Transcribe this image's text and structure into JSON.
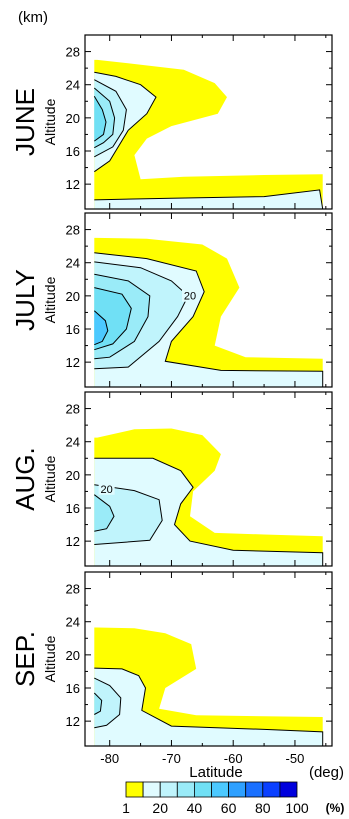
{
  "chart_data": {
    "type": "contour",
    "unit_altitude": "(km)",
    "unit_latitude": "(deg)",
    "xlabel": "Latitude",
    "ylabel": "Altitude",
    "xlim": [
      -84,
      -44
    ],
    "ylim": [
      9,
      30
    ],
    "x_ticks": [
      -80,
      -70,
      -60,
      -50
    ],
    "y_ticks": [
      12,
      16,
      20,
      24,
      28
    ],
    "panels": [
      {
        "month": "JUNE",
        "inline_labels": [],
        "levels": [
          {
            "value": 1,
            "pts": [
              [
                -82,
                27
              ],
              [
                -76,
                26.5
              ],
              [
                -68,
                25.8
              ],
              [
                -63,
                24.2
              ],
              [
                -61,
                22.5
              ],
              [
                -62.5,
                20.5
              ],
              [
                -70,
                19
              ],
              [
                -74,
                17.5
              ],
              [
                -76,
                15.5
              ],
              [
                -75,
                12.6
              ],
              [
                -68,
                12.9
              ],
              [
                -55,
                13.1
              ],
              [
                -45.5,
                13.2
              ],
              [
                -45.5,
                9
              ],
              [
                -82.5,
                9
              ],
              [
                -82.5,
                27
              ]
            ]
          },
          {
            "value": 10,
            "pts": [
              [
                -82.5,
                25.5
              ],
              [
                -79,
                25
              ],
              [
                -75,
                24
              ],
              [
                -72.5,
                22.5
              ],
              [
                -74,
                20.5
              ],
              [
                -77,
                18.5
              ],
              [
                -80,
                14.8
              ],
              [
                -82.5,
                13.5
              ]
            ]
          },
          {
            "value": 10,
            "pts": [
              [
                -82.5,
                10.1
              ],
              [
                -70,
                10.3
              ],
              [
                -55,
                10.5
              ],
              [
                -46,
                11.3
              ],
              [
                -45.5,
                9
              ],
              [
                -82.5,
                9
              ]
            ]
          },
          {
            "value": 20,
            "pts": [
              [
                -82.5,
                24.6
              ],
              [
                -79,
                23.2
              ],
              [
                -77.3,
                21
              ],
              [
                -77.8,
                18.5
              ],
              [
                -79.5,
                16.5
              ],
              [
                -82.5,
                15.3
              ]
            ]
          },
          {
            "value": 30,
            "pts": [
              [
                -82.5,
                23.6
              ],
              [
                -80,
                22
              ],
              [
                -79.2,
                20
              ],
              [
                -79.5,
                18
              ],
              [
                -81,
                17
              ],
              [
                -82.5,
                16.4
              ]
            ]
          },
          {
            "value": 40,
            "pts": [
              [
                -82.5,
                22.6
              ],
              [
                -81.2,
                21
              ],
              [
                -80.6,
                19.5
              ],
              [
                -81,
                18
              ],
              [
                -82.5,
                17.2
              ]
            ]
          }
        ]
      },
      {
        "month": "JULY",
        "inline_labels": [
          {
            "text": "20",
            "lat": -67,
            "alt": 19.9
          }
        ],
        "levels": [
          {
            "value": 1,
            "pts": [
              [
                -82,
                27
              ],
              [
                -74,
                26.9
              ],
              [
                -65,
                26.2
              ],
              [
                -61,
                24.5
              ],
              [
                -59,
                21
              ],
              [
                -62,
                17.5
              ],
              [
                -63,
                14
              ],
              [
                -58,
                12.6
              ],
              [
                -45.5,
                12.4
              ],
              [
                -45.5,
                9
              ],
              [
                -82.5,
                9
              ],
              [
                -82.5,
                27
              ]
            ]
          },
          {
            "value": 10,
            "pts": [
              [
                -82.5,
                25.2
              ],
              [
                -74,
                24.5
              ],
              [
                -66,
                23
              ],
              [
                -64.7,
                20.5
              ],
              [
                -66.5,
                17.5
              ],
              [
                -70,
                14.5
              ],
              [
                -71,
                12.1
              ],
              [
                -62,
                11
              ],
              [
                -45.5,
                10.9
              ],
              [
                -45.5,
                9
              ],
              [
                -82.5,
                9
              ]
            ]
          },
          {
            "value": 20,
            "pts": [
              [
                -82.5,
                24.1
              ],
              [
                -75,
                23.4
              ],
              [
                -70,
                21.8
              ],
              [
                -67.3,
                20
              ],
              [
                -69,
                17.5
              ],
              [
                -72,
                14.5
              ],
              [
                -77,
                11.4
              ],
              [
                -82.5,
                11.2
              ]
            ]
          },
          {
            "value": 30,
            "pts": [
              [
                -82.5,
                22.6
              ],
              [
                -77,
                21.8
              ],
              [
                -73.5,
                20
              ],
              [
                -73.8,
                17.5
              ],
              [
                -76,
                14.5
              ],
              [
                -80,
                12.6
              ],
              [
                -82.5,
                12.4
              ]
            ]
          },
          {
            "value": 40,
            "pts": [
              [
                -82.5,
                21
              ],
              [
                -78,
                20.2
              ],
              [
                -76.5,
                18.5
              ],
              [
                -77.3,
                16
              ],
              [
                -79.5,
                14.2
              ],
              [
                -82.5,
                13.5
              ]
            ]
          },
          {
            "value": 50,
            "pts": [
              [
                -82.5,
                18.2
              ],
              [
                -80.7,
                17
              ],
              [
                -80.3,
                15.8
              ],
              [
                -81.2,
                14.5
              ],
              [
                -82.5,
                14.1
              ]
            ]
          }
        ]
      },
      {
        "month": "AUG.",
        "inline_labels": [
          {
            "text": "20",
            "lat": -80.5,
            "alt": 18.2
          }
        ],
        "levels": [
          {
            "value": 1,
            "pts": [
              [
                -82,
                24.5
              ],
              [
                -76,
                25.5
              ],
              [
                -70,
                25.6
              ],
              [
                -65,
                24.8
              ],
              [
                -62,
                22.5
              ],
              [
                -63,
                20.5
              ],
              [
                -66.5,
                18
              ],
              [
                -67,
                15
              ],
              [
                -63,
                13
              ],
              [
                -55,
                12.8
              ],
              [
                -45.5,
                12.6
              ],
              [
                -45.5,
                9
              ],
              [
                -82.5,
                9
              ],
              [
                -82.5,
                24.5
              ]
            ]
          },
          {
            "value": 10,
            "pts": [
              [
                -82.5,
                22
              ],
              [
                -73,
                22
              ],
              [
                -68.5,
                20.5
              ],
              [
                -66.5,
                18.5
              ],
              [
                -68.5,
                16.5
              ],
              [
                -69.5,
                14
              ],
              [
                -67,
                12
              ],
              [
                -60,
                10.9
              ],
              [
                -45.5,
                10.6
              ],
              [
                -45.5,
                9
              ],
              [
                -82.5,
                9
              ]
            ]
          },
          {
            "value": 20,
            "pts": [
              [
                -82.5,
                18.8
              ],
              [
                -76,
                18.1
              ],
              [
                -72,
                17
              ],
              [
                -71.5,
                14.5
              ],
              [
                -73.5,
                12.1
              ],
              [
                -82.5,
                11.6
              ]
            ]
          },
          {
            "value": 30,
            "pts": [
              [
                -82.5,
                17.6
              ],
              [
                -80,
                16.2
              ],
              [
                -79.3,
                15
              ],
              [
                -80.5,
                13.5
              ],
              [
                -82.5,
                13.2
              ]
            ]
          }
        ]
      },
      {
        "month": "SEP.",
        "inline_labels": [],
        "levels": [
          {
            "value": 1,
            "pts": [
              [
                -82,
                23.3
              ],
              [
                -76,
                23.2
              ],
              [
                -71,
                22.6
              ],
              [
                -66.8,
                21.3
              ],
              [
                -66,
                18.3
              ],
              [
                -71,
                16
              ],
              [
                -72,
                13.5
              ],
              [
                -66,
                12.7
              ],
              [
                -55,
                12.6
              ],
              [
                -45.5,
                12.5
              ],
              [
                -45.5,
                9
              ],
              [
                -82.5,
                9
              ],
              [
                -82.5,
                23.3
              ]
            ]
          },
          {
            "value": 10,
            "pts": [
              [
                -82.5,
                18.4
              ],
              [
                -78,
                18.3
              ],
              [
                -75.3,
                17.5
              ],
              [
                -74.2,
                16
              ],
              [
                -74.8,
                13.3
              ],
              [
                -70,
                11.4
              ],
              [
                -55,
                11
              ],
              [
                -45.5,
                10.7
              ],
              [
                -45.5,
                9
              ],
              [
                -82.5,
                9
              ]
            ]
          },
          {
            "value": 20,
            "pts": [
              [
                -82.5,
                17.2
              ],
              [
                -80,
                16.3
              ],
              [
                -78.2,
                14.8
              ],
              [
                -78.4,
                12.8
              ],
              [
                -80.5,
                11.5
              ],
              [
                -82.5,
                11.2
              ]
            ]
          },
          {
            "value": 30,
            "pts": [
              [
                -82.5,
                15.4
              ],
              [
                -81.3,
                14.5
              ],
              [
                -81.5,
                13.2
              ],
              [
                -82.5,
                12.8
              ]
            ]
          }
        ]
      }
    ],
    "colorbar": {
      "label_values": [
        "1",
        "20",
        "40",
        "60",
        "80",
        "100"
      ],
      "unit": "(%)",
      "colors": [
        "#ffff00",
        "#e0fbff",
        "#c0f4fc",
        "#9aebf8",
        "#70e0f5",
        "#4cc9ff",
        "#2ea0ff",
        "#1a70ff",
        "#0a40ff",
        "#0000dd"
      ]
    }
  }
}
